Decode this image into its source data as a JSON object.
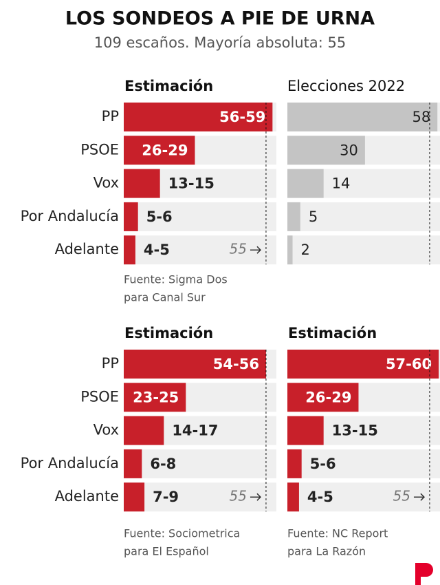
{
  "title": "LOS SONDEOS A PIE DE URNA",
  "subtitle": "109 escaños. Mayoría absoluta: 55",
  "chart_data": [
    {
      "type": "range-bar",
      "title": "Estimación",
      "title_bold": true,
      "categories": [
        "PP",
        "PSOE",
        "Vox",
        "Por Andalucía",
        "Adelante"
      ],
      "low": [
        56,
        26,
        13,
        5,
        4
      ],
      "high": [
        59,
        29,
        15,
        6,
        5
      ],
      "value_labels": [
        "56-59",
        "26-29",
        "13-15",
        "5-6",
        "4-5"
      ],
      "color": "#c8202a",
      "xlim": [
        0,
        59
      ],
      "majority": 55,
      "majority_label": true,
      "source": [
        "Fuente: Sigma Dos",
        "para Canal Sur"
      ]
    },
    {
      "type": "bar",
      "title": "Elecciones 2022",
      "title_bold": false,
      "values": [
        58,
        30,
        14,
        5,
        2
      ],
      "color": "#c4c4c4",
      "xlim": [
        0,
        59
      ],
      "majority": 55,
      "majority_label": false
    },
    {
      "type": "range-bar",
      "title": "Estimación",
      "title_bold": true,
      "categories": [
        "PP",
        "PSOE",
        "Vox",
        "Por Andalucía",
        "Adelante"
      ],
      "low": [
        54,
        23,
        14,
        6,
        7
      ],
      "high": [
        56,
        25,
        17,
        8,
        9
      ],
      "value_labels": [
        "54-56",
        "23-25",
        "14-17",
        "6-8",
        "7-9"
      ],
      "color": "#c8202a",
      "xlim": [
        0,
        59
      ],
      "majority": 55,
      "majority_label": true,
      "source": [
        "Fuente: Sociometrica",
        "para El Español"
      ]
    },
    {
      "type": "range-bar",
      "title": "Estimación",
      "title_bold": true,
      "low": [
        57,
        26,
        13,
        5,
        4
      ],
      "high": [
        60,
        29,
        15,
        6,
        5
      ],
      "value_labels": [
        "57-60",
        "26-29",
        "13-15",
        "5-6",
        "4-5"
      ],
      "color": "#c8202a",
      "xlim": [
        0,
        59
      ],
      "majority": 55,
      "majority_label": true,
      "source": [
        "Fuente: NC Report",
        "para La Razón"
      ]
    }
  ]
}
